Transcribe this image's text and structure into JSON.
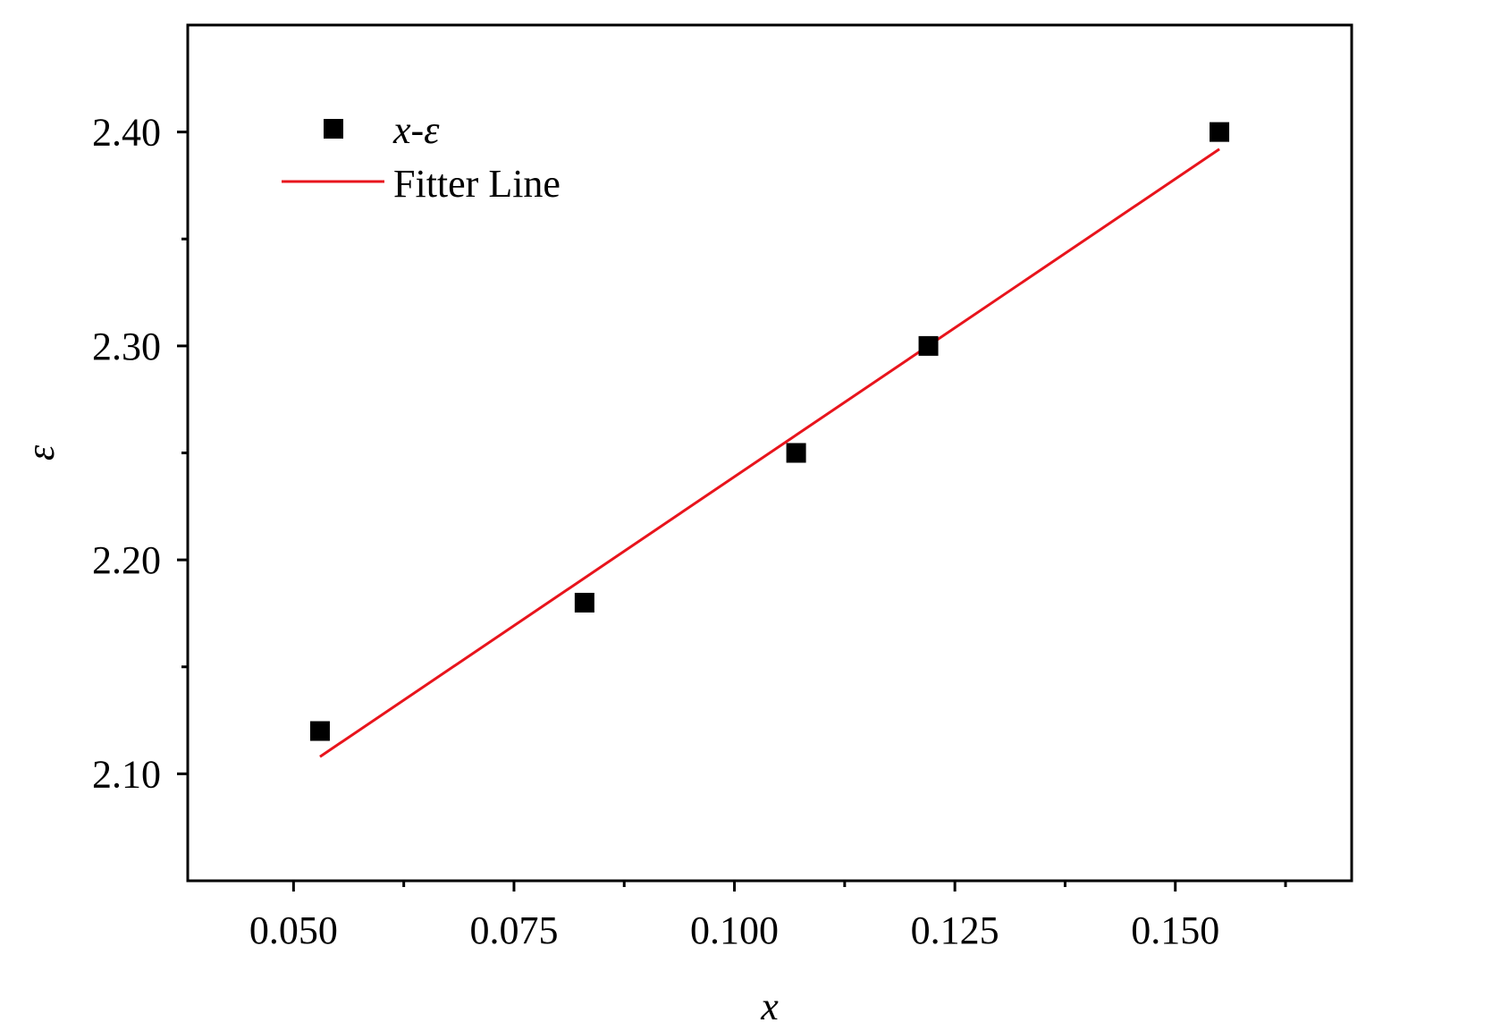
{
  "chart_data": {
    "type": "scatter",
    "title": "",
    "xlabel": "x",
    "ylabel": "ε",
    "xlim": [
      0.038,
      0.17
    ],
    "ylim": [
      2.05,
      2.45
    ],
    "x_ticks": [
      0.05,
      0.075,
      0.1,
      0.125,
      0.15
    ],
    "x_tick_labels": [
      "0.050",
      "0.075",
      "0.100",
      "0.125",
      "0.150"
    ],
    "x_minor_ticks": [
      0.0625,
      0.0875,
      0.1125,
      0.1375,
      0.1625
    ],
    "y_ticks": [
      2.1,
      2.2,
      2.3,
      2.4
    ],
    "y_tick_labels": [
      "2.10",
      "2.20",
      "2.30",
      "2.40"
    ],
    "y_minor_ticks": [
      2.15,
      2.25,
      2.35
    ],
    "grid": false,
    "legend_position": "top-left",
    "series": [
      {
        "name": "x-ε",
        "kind": "scatter",
        "marker": "square",
        "color": "#000000",
        "x": [
          0.053,
          0.083,
          0.107,
          0.122,
          0.155
        ],
        "y": [
          2.12,
          2.18,
          2.25,
          2.3,
          2.4
        ]
      },
      {
        "name": "Fitter Line",
        "kind": "line",
        "color": "#e8141c",
        "x": [
          0.053,
          0.155
        ],
        "y": [
          2.108,
          2.392
        ]
      }
    ]
  }
}
